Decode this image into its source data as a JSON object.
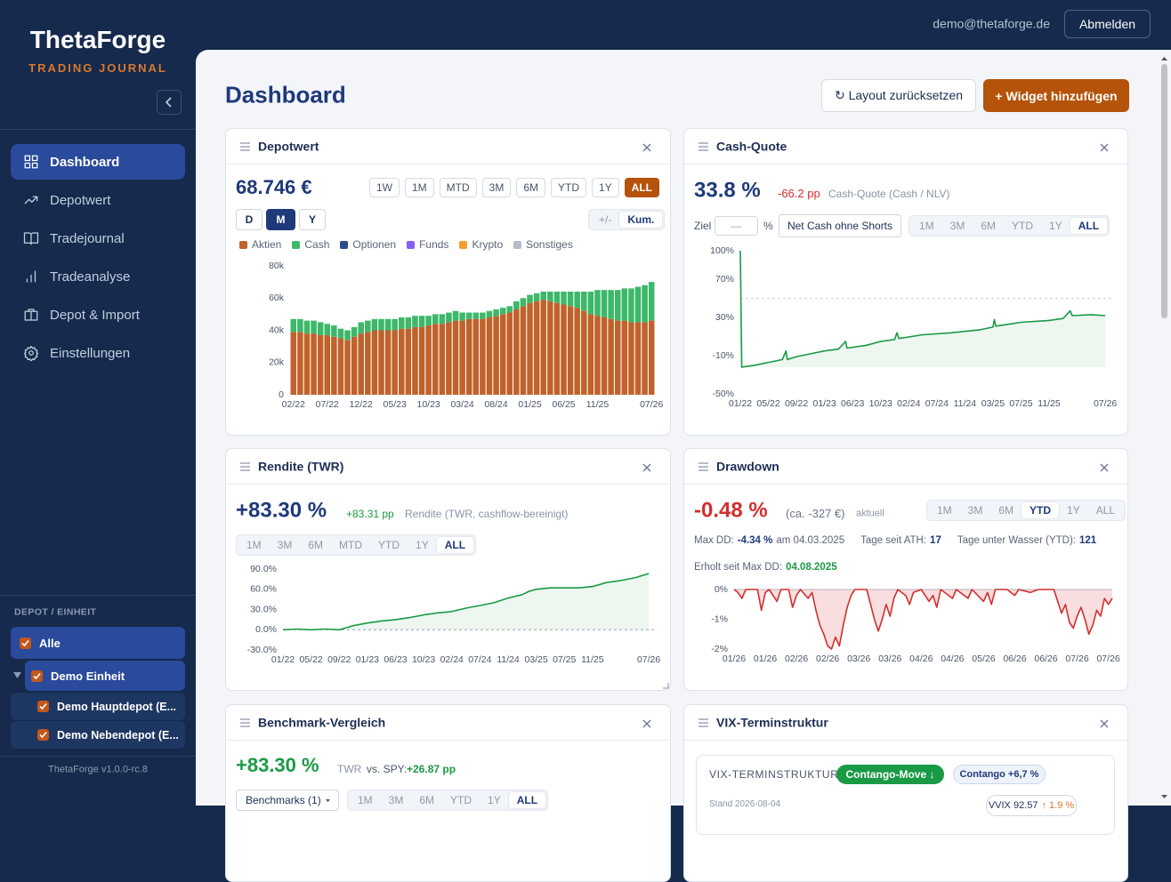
{
  "sidebar": {
    "brand": "ThetaForge",
    "tagline": "TRADING JOURNAL",
    "nav": [
      "Dashboard",
      "Depotwert",
      "Tradejournal",
      "Tradeanalyse",
      "Depot & Import",
      "Einstellungen"
    ],
    "nav_active": "Dashboard",
    "depot_heading": "DEPOT / EINHEIT",
    "depots": [
      {
        "label": "Alle",
        "checked": true
      },
      {
        "label": "Demo Einheit",
        "checked": true
      },
      {
        "label": "Demo Hauptdepot (E...",
        "checked": true
      },
      {
        "label": "Demo Nebendepot (E...",
        "checked": true
      }
    ],
    "version": "ThetaForge v1.0.0-rc.8"
  },
  "header": {
    "email": "demo@thetaforge.de",
    "logout": "Abmelden"
  },
  "page": {
    "title": "Dashboard",
    "reset_button": "↻ Layout zurücksetzen",
    "add_button": "+ Widget hinzufügen"
  },
  "widgets": {
    "depotwert": {
      "title": "Depotwert",
      "value": "68.746 €",
      "periods": [
        "1W",
        "1M",
        "MTD",
        "3M",
        "6M",
        "YTD",
        "1Y",
        "ALL"
      ],
      "period_active": "ALL",
      "granularity": [
        "D",
        "M",
        "Y"
      ],
      "granularity_active": "M",
      "modes": [
        "+/-",
        "Kum."
      ],
      "mode_active": "Kum.",
      "chart": {
        "type": "bar",
        "stacked": true,
        "grid": false,
        "categories": [
          "02/22",
          null,
          null,
          null,
          null,
          "07/22",
          null,
          null,
          null,
          null,
          "12/22",
          null,
          null,
          null,
          null,
          "05/23",
          null,
          null,
          null,
          null,
          "10/23",
          null,
          null,
          null,
          null,
          "03/24",
          null,
          null,
          null,
          null,
          "08/24",
          null,
          null,
          null,
          null,
          "01/25",
          null,
          null,
          null,
          null,
          "06/25",
          null,
          null,
          null,
          null,
          "11/25",
          null,
          null,
          null,
          null,
          null,
          null,
          null,
          "07/26"
        ],
        "series": [
          {
            "name": "Aktien",
            "color": "#c0622b",
            "values": [
              39000,
              39000,
              38000,
              38000,
              37000,
              37000,
              36000,
              35000,
              34000,
              36000,
              38000,
              39000,
              40000,
              40000,
              40000,
              40000,
              41000,
              41000,
              42000,
              42000,
              43000,
              44000,
              44000,
              45000,
              46000,
              46000,
              47000,
              47000,
              47000,
              48000,
              49000,
              50000,
              51000,
              53000,
              55000,
              57000,
              58000,
              59000,
              58000,
              57000,
              56000,
              55000,
              54000,
              52000,
              50000,
              49000,
              48000,
              47000,
              46000,
              46000,
              45000,
              45000,
              45000,
              46000
            ]
          },
          {
            "name": "Cash",
            "color": "#3db86a",
            "values": [
              8000,
              8000,
              8000,
              8000,
              8000,
              7000,
              7000,
              6000,
              6000,
              6000,
              7000,
              7000,
              7000,
              7000,
              7000,
              7000,
              7000,
              7000,
              7000,
              7000,
              6000,
              6000,
              6000,
              6000,
              6000,
              5000,
              4000,
              4000,
              4000,
              4000,
              4000,
              4000,
              4000,
              5000,
              5000,
              5000,
              5000,
              5000,
              6000,
              7000,
              8000,
              9000,
              10000,
              12000,
              14000,
              16000,
              17000,
              18000,
              19000,
              20000,
              21000,
              22000,
              23000,
              24000
            ]
          },
          {
            "name": "Optionen",
            "color": "#2e4a8e"
          },
          {
            "name": "Funds",
            "color": "#8b5cf6"
          },
          {
            "name": "Krypto",
            "color": "#f59e2b"
          },
          {
            "name": "Sonstiges",
            "color": "#b3bcc8"
          }
        ],
        "ylim": [
          0,
          80000
        ],
        "yticks": [
          0,
          {
            "value": 20000,
            "label": "20k"
          },
          {
            "value": 40000,
            "label": "40k"
          },
          {
            "value": 60000,
            "label": "60k"
          },
          {
            "value": 80000,
            "label": "80k"
          }
        ]
      }
    },
    "cash_quote": {
      "title": "Cash-Quote",
      "value": "33.8 %",
      "change": "-66.2 pp",
      "caption": "Cash-Quote (Cash / NLV)",
      "target_label": "Ziel",
      "target_placeholder": "—",
      "target_unit": "%",
      "net_cash_button": "Net Cash ohne Shorts",
      "periods": [
        "1M",
        "3M",
        "6M",
        "YTD",
        "1Y",
        "ALL"
      ],
      "period_active": "ALL",
      "chart": {
        "type": "line",
        "color": "#1a9a45",
        "fill": "down",
        "grid": false,
        "reference_line": 50,
        "x": [
          0,
          0.2,
          2,
          4,
          6,
          6.5,
          6.7,
          8,
          10,
          12,
          14,
          15,
          15.2,
          18,
          20,
          22,
          22.3,
          22.6,
          26,
          30,
          34,
          36,
          36.2,
          36.4,
          40,
          44,
          46,
          47,
          47.3,
          50,
          52
        ],
        "values": [
          100,
          -22,
          -20,
          -17,
          -14,
          -5,
          -14,
          -11,
          -8,
          -5,
          -3,
          5,
          -2,
          1,
          5,
          7,
          14,
          8,
          12,
          14,
          17,
          20,
          28,
          21,
          25,
          27,
          29,
          37,
          32,
          33,
          32
        ],
        "xlim": [
          0,
          53
        ],
        "xticks": [
          {
            "value": 0,
            "label": "01/22"
          },
          {
            "value": 4,
            "label": "05/22"
          },
          {
            "value": 8,
            "label": "09/22"
          },
          {
            "value": 12,
            "label": "01/23"
          },
          {
            "value": 16,
            "label": "06/23"
          },
          {
            "value": 20,
            "label": "10/23"
          },
          {
            "value": 24,
            "label": "02/24"
          },
          {
            "value": 28,
            "label": "07/24"
          },
          {
            "value": 32,
            "label": "11/24"
          },
          {
            "value": 36,
            "label": "03/25"
          },
          {
            "value": 40,
            "label": "07/25"
          },
          {
            "value": 44,
            "label": "11/25"
          },
          {
            "value": 52,
            "label": "07/26"
          }
        ],
        "ylim": [
          -50,
          100
        ],
        "yticks": [
          {
            "value": -50,
            "label": "-50%"
          },
          {
            "value": -10,
            "label": "-10%"
          },
          {
            "value": 30,
            "label": "30%"
          },
          {
            "value": 70,
            "label": "70%"
          },
          {
            "value": 100,
            "label": "100%"
          }
        ]
      }
    },
    "rendite": {
      "title": "Rendite (TWR)",
      "value": "+83.30 %",
      "change": "+83.31 pp",
      "caption": "Rendite (TWR, cashflow-bereinigt)",
      "periods": [
        "1M",
        "3M",
        "6M",
        "MTD",
        "YTD",
        "1Y",
        "ALL"
      ],
      "period_active": "ALL",
      "chart": {
        "type": "line",
        "color": "#1a9a45",
        "fill": "down",
        "grid": false,
        "zero_line": "dashed",
        "x": [
          0,
          2,
          4,
          6,
          8,
          9,
          10,
          12,
          14,
          16,
          18,
          20,
          22,
          24,
          26,
          28,
          30,
          32,
          34,
          35,
          36,
          38,
          40,
          42,
          44,
          46,
          48,
          50,
          52
        ],
        "values": [
          0,
          1,
          0,
          1,
          0,
          3,
          6,
          10,
          13,
          15,
          18,
          22,
          25,
          27,
          32,
          36,
          40,
          47,
          52,
          57,
          60,
          62,
          62,
          62,
          64,
          70,
          73,
          77,
          83.3
        ],
        "xlim": [
          0,
          53
        ],
        "xticks": [
          {
            "value": 0,
            "label": "01/22"
          },
          {
            "value": 4,
            "label": "05/22"
          },
          {
            "value": 8,
            "label": "09/22"
          },
          {
            "value": 12,
            "label": "01/23"
          },
          {
            "value": 16,
            "label": "06/23"
          },
          {
            "value": 20,
            "label": "10/23"
          },
          {
            "value": 24,
            "label": "02/24"
          },
          {
            "value": 28,
            "label": "07/24"
          },
          {
            "value": 32,
            "label": "11/24"
          },
          {
            "value": 36,
            "label": "03/25"
          },
          {
            "value": 40,
            "label": "07/25"
          },
          {
            "value": 44,
            "label": "11/25"
          },
          {
            "value": 52,
            "label": "07/26"
          }
        ],
        "ylim": [
          -30,
          90
        ],
        "yticks": [
          {
            "value": -30,
            "label": "-30.0%"
          },
          {
            "value": 0,
            "label": "0.0%"
          },
          {
            "value": 30,
            "label": "30.0%"
          },
          {
            "value": 60,
            "label": "60.0%"
          },
          {
            "value": 90,
            "label": "90.0%"
          }
        ]
      }
    },
    "drawdown": {
      "title": "Drawdown",
      "value": "-0.48 %",
      "approx": "(ca. -327 €)",
      "status": "aktuell",
      "periods": [
        "1M",
        "3M",
        "6M",
        "YTD",
        "1Y",
        "ALL"
      ],
      "period_active": "YTD",
      "max_dd_label": "Max DD:",
      "max_dd_value": "-4.34 %",
      "max_dd_date": "am 04.03.2025",
      "ath_label": "Tage seit ATH:",
      "ath_value": "17",
      "underwater_label": "Tage unter Wasser (YTD):",
      "underwater_value": "121",
      "recovered_label": "Erholt seit Max DD:",
      "recovered_value": "04.08.2025",
      "chart": {
        "type": "line",
        "color": "#d32f2f",
        "fill": "up",
        "grid": false,
        "zero_line": "solid",
        "x": [
          0,
          1,
          2,
          3,
          6,
          7,
          8,
          9,
          11,
          12,
          14,
          15,
          16,
          17,
          19,
          20,
          21,
          22,
          23,
          24,
          25,
          26,
          27,
          28,
          29,
          30,
          31,
          34,
          35,
          36,
          37,
          38,
          39,
          40,
          41,
          42,
          44,
          45,
          46,
          48,
          50,
          51,
          52,
          53,
          56,
          57,
          60,
          61,
          64,
          65,
          66,
          67,
          70,
          72,
          73,
          76,
          78,
          82,
          83,
          84,
          85,
          86,
          87,
          88,
          89,
          90,
          91,
          92,
          93,
          94,
          95,
          96,
          97
        ],
        "values": [
          0,
          -0.1,
          -0.3,
          0,
          0,
          -0.7,
          -0.1,
          0,
          -0.4,
          0,
          0,
          -0.6,
          -0.2,
          0,
          -0.3,
          -0.1,
          -0.7,
          -1.2,
          -1.5,
          -1.9,
          -2,
          -1.6,
          -1.9,
          -1.2,
          -0.6,
          -0.2,
          0,
          0,
          -0.5,
          -1,
          -1.4,
          -1,
          -0.5,
          -0.9,
          -0.3,
          0,
          -0.2,
          -0.5,
          -0.1,
          0,
          -0.4,
          -0.2,
          -0.6,
          0,
          -0.3,
          0,
          -0.3,
          0,
          -0.4,
          -0.1,
          -0.5,
          0,
          0,
          -0.2,
          0,
          -0.1,
          0,
          0,
          -0.4,
          -0.8,
          -0.5,
          -1.1,
          -1.3,
          -0.9,
          -0.6,
          -1,
          -1.5,
          -1.2,
          -0.7,
          -0.9,
          -0.3,
          -0.5,
          -0.3
        ],
        "xlim": [
          0,
          97
        ],
        "xticks": [
          {
            "value": 0,
            "label": "01/26"
          },
          {
            "value": 8,
            "label": "01/26"
          },
          {
            "value": 16,
            "label": "02/26"
          },
          {
            "value": 24,
            "label": "02/26"
          },
          {
            "value": 32,
            "label": "03/26"
          },
          {
            "value": 40,
            "label": "03/26"
          },
          {
            "value": 48,
            "label": "04/26"
          },
          {
            "value": 56,
            "label": "04/26"
          },
          {
            "value": 64,
            "label": "05/26"
          },
          {
            "value": 72,
            "label": "06/26"
          },
          {
            "value": 80,
            "label": "06/26"
          },
          {
            "value": 88,
            "label": "07/26"
          },
          {
            "value": 96,
            "label": "07/26"
          }
        ],
        "ylim": [
          -2,
          0
        ],
        "yticks": [
          {
            "value": -2,
            "label": "-2%"
          },
          {
            "value": -1,
            "label": "-1%"
          },
          {
            "value": 0,
            "label": "0%"
          }
        ]
      }
    },
    "benchmark": {
      "title": "Benchmark-Vergleich",
      "value": "+83.30 %",
      "metric": "TWR",
      "vs_label": "vs. SPY:",
      "vs_value": "+26.87 pp",
      "benchmarks_button": "Benchmarks (1)",
      "periods": [
        "1M",
        "3M",
        "6M",
        "YTD",
        "1Y",
        "ALL"
      ],
      "period_active": "ALL"
    },
    "vix": {
      "title": "VIX-Terminstruktur",
      "heading": "VIX-TERMINSTRUKTUR",
      "signal": "Contango-Move ↓",
      "contango": "Contango +6,7 %",
      "stand": "Stand 2026-08-04",
      "vvix": "VVIX 92.57",
      "vvix_change": "↑ 1.9 %"
    }
  }
}
